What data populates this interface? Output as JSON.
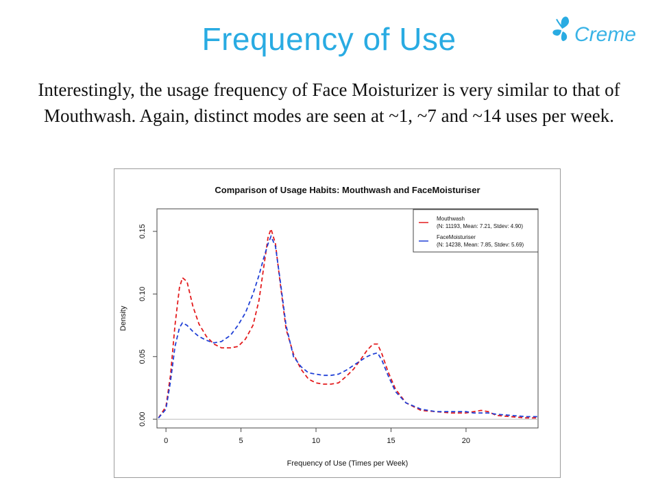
{
  "slide": {
    "title": "Frequency of Use",
    "body": "Interestingly, the usage frequency of Face Moisturizer is very similar to that of Mouthwash. Again, distinct modes are seen at ~1, ~7 and ~14 uses per week."
  },
  "brand": {
    "name": "Creme",
    "icon": "butterfly-logo-icon",
    "color": "#29abe2"
  },
  "chart_data": {
    "type": "line",
    "title": "Comparison of Usage Habits: Mouthwash and FaceMoisturiser",
    "xlabel": "Frequency of Use (Times per Week)",
    "ylabel": "Density",
    "xlim": [
      -0.6,
      24.8
    ],
    "ylim": [
      -0.007,
      0.168
    ],
    "xticks": [
      0,
      5,
      10,
      15,
      20
    ],
    "yticks": [
      0.0,
      0.05,
      0.1,
      0.15
    ],
    "ytick_labels": [
      "0.00",
      "0.05",
      "0.10",
      "0.15"
    ],
    "legend_position": "top-right",
    "grid": false,
    "series": [
      {
        "name": "Mouthwash",
        "legend_detail": "(N: 11193, Mean: 7.21, Stdev: 4.90)",
        "color": "#e31a1c",
        "x": [
          -0.5,
          0,
          0.3,
          0.6,
          0.9,
          1.1,
          1.4,
          1.8,
          2.2,
          2.7,
          3.2,
          3.7,
          4.3,
          4.8,
          5.3,
          5.8,
          6.2,
          6.5,
          6.8,
          7.0,
          7.3,
          7.6,
          8.0,
          8.5,
          9.0,
          9.5,
          10.0,
          10.5,
          11.0,
          11.5,
          12.0,
          12.5,
          13.0,
          13.4,
          13.8,
          14.1,
          14.4,
          14.8,
          15.3,
          16.0,
          17.0,
          18.0,
          19.0,
          20.0,
          20.5,
          21.0,
          21.5,
          22.0,
          23.0,
          24.0,
          24.8
        ],
        "y": [
          0.001,
          0.01,
          0.035,
          0.075,
          0.105,
          0.113,
          0.11,
          0.09,
          0.076,
          0.066,
          0.06,
          0.057,
          0.057,
          0.058,
          0.064,
          0.075,
          0.095,
          0.12,
          0.145,
          0.152,
          0.14,
          0.11,
          0.072,
          0.052,
          0.04,
          0.032,
          0.029,
          0.028,
          0.028,
          0.029,
          0.034,
          0.04,
          0.048,
          0.055,
          0.06,
          0.06,
          0.052,
          0.038,
          0.024,
          0.013,
          0.007,
          0.006,
          0.005,
          0.005,
          0.006,
          0.007,
          0.006,
          0.003,
          0.002,
          0.001,
          0.001
        ]
      },
      {
        "name": "FaceMoisturiser",
        "legend_detail": "(N: 14238, Mean: 7.85, Stdev: 5.69)",
        "color": "#1f3fd6",
        "x": [
          -0.5,
          0,
          0.3,
          0.6,
          0.9,
          1.1,
          1.4,
          1.8,
          2.2,
          2.7,
          3.2,
          3.7,
          4.3,
          4.8,
          5.3,
          5.8,
          6.2,
          6.5,
          6.8,
          7.0,
          7.3,
          7.6,
          8.0,
          8.5,
          9.0,
          9.5,
          10.0,
          10.5,
          11.0,
          11.5,
          12.0,
          12.5,
          13.0,
          13.4,
          13.8,
          14.1,
          14.4,
          14.8,
          15.3,
          16.0,
          17.0,
          18.0,
          19.0,
          20.0,
          20.5,
          21.0,
          21.5,
          22.0,
          23.0,
          24.0,
          24.8
        ],
        "y": [
          0.001,
          0.008,
          0.03,
          0.058,
          0.073,
          0.077,
          0.075,
          0.07,
          0.066,
          0.063,
          0.061,
          0.062,
          0.067,
          0.075,
          0.085,
          0.1,
          0.115,
          0.128,
          0.14,
          0.146,
          0.138,
          0.112,
          0.075,
          0.05,
          0.042,
          0.037,
          0.036,
          0.035,
          0.035,
          0.036,
          0.039,
          0.043,
          0.047,
          0.05,
          0.052,
          0.053,
          0.047,
          0.035,
          0.022,
          0.013,
          0.008,
          0.006,
          0.006,
          0.006,
          0.005,
          0.005,
          0.005,
          0.004,
          0.003,
          0.002,
          0.002
        ]
      }
    ]
  }
}
